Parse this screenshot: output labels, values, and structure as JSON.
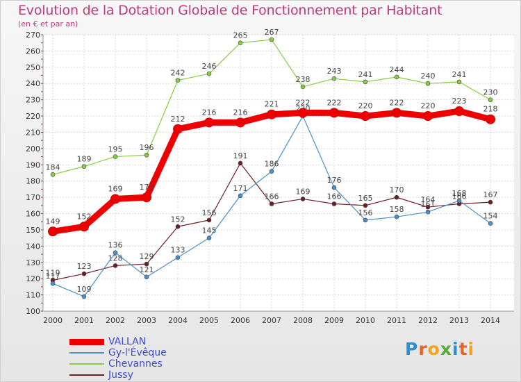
{
  "title": "Evolution de la Dotation Globale de Fonctionnement par Habitant",
  "subtitle": "(en € et par an)",
  "brand": "Proxiti",
  "chart_data": {
    "type": "line",
    "title": "Evolution de la Dotation Globale de Fonctionnement par Habitant",
    "ylabel": "(en € et par an)",
    "xlabel": "",
    "ylim": [
      100,
      270
    ],
    "ytick_step": 10,
    "grid": true,
    "x": [
      2000,
      2001,
      2002,
      2003,
      2004,
      2005,
      2006,
      2007,
      2008,
      2009,
      2010,
      2011,
      2012,
      2013,
      2014
    ],
    "series": [
      {
        "name": "VALLAN",
        "color": "#ee0000",
        "values": [
          149,
          152,
          169,
          170,
          212,
          216,
          216,
          221,
          222,
          222,
          220,
          222,
          220,
          223,
          218
        ]
      },
      {
        "name": "Gy-l'Évêque",
        "color": "#4a8fc8",
        "values": [
          117,
          109,
          136,
          121,
          133,
          145,
          171,
          186,
          220,
          176,
          156,
          158,
          161,
          168,
          154
        ]
      },
      {
        "name": "Chevannes",
        "color": "#88cc44",
        "values": [
          184,
          189,
          195,
          196,
          242,
          246,
          265,
          267,
          238,
          243,
          241,
          244,
          240,
          241,
          230
        ]
      },
      {
        "name": "Jussy",
        "color": "#6b1f24",
        "values": [
          119,
          123,
          128,
          129,
          152,
          156,
          191,
          166,
          169,
          166,
          165,
          170,
          164,
          166,
          167
        ]
      }
    ]
  }
}
